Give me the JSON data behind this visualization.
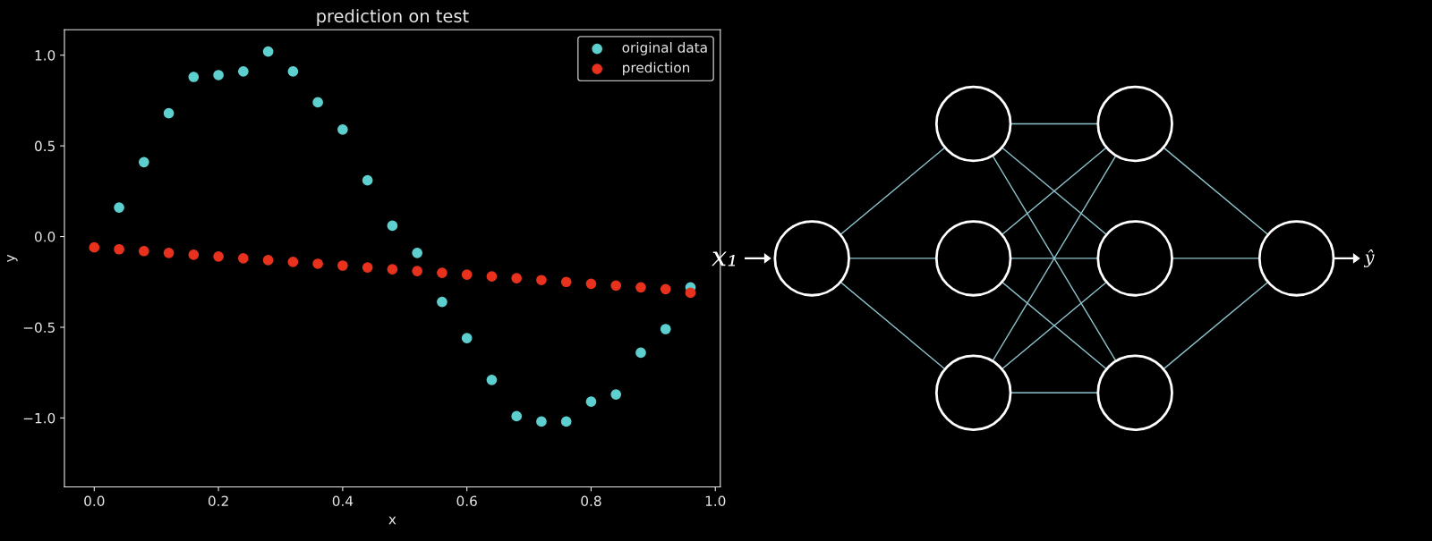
{
  "chart_data": [
    {
      "type": "scatter",
      "title": "prediction on test",
      "xlabel": "x",
      "ylabel": "y",
      "xlim": [
        -0.048,
        1.008
      ],
      "ylim": [
        -1.38,
        1.14
      ],
      "xticks": [
        {
          "value": 0,
          "label": "0.0"
        },
        0.2,
        0.4,
        0.6,
        0.8,
        {
          "value": 1,
          "label": "1.0"
        }
      ],
      "yticks": [
        {
          "value": -1,
          "label": "−1.0"
        },
        {
          "value": -0.5,
          "label": "−0.5"
        },
        {
          "value": 0,
          "label": "0.0"
        },
        0.5,
        {
          "value": 1,
          "label": "1.0"
        }
      ],
      "grid": false,
      "legend": "top right",
      "marker": "circle",
      "series": [
        {
          "name": "original data",
          "color": "#5ecfcf",
          "x": [
            0.04,
            0.08,
            0.12,
            0.16,
            0.2,
            0.24,
            0.28,
            0.32,
            0.36,
            0.4,
            0.44,
            0.48,
            0.52,
            0.56,
            0.6,
            0.64,
            0.68,
            0.72,
            0.76,
            0.8,
            0.84,
            0.88,
            0.92,
            0.96
          ],
          "values": [
            0.16,
            0.41,
            0.68,
            0.88,
            0.89,
            0.91,
            1.02,
            0.91,
            0.74,
            0.59,
            0.31,
            0.06,
            -0.09,
            -0.36,
            -0.56,
            -0.79,
            -0.99,
            -1.02,
            -1.02,
            -0.91,
            -0.87,
            -0.64,
            -0.51,
            -0.28
          ]
        },
        {
          "name": "prediction",
          "color": "#e8321e",
          "x": [
            0,
            0.04,
            0.08,
            0.12,
            0.16,
            0.2,
            0.24,
            0.28,
            0.32,
            0.36,
            0.4,
            0.44,
            0.48,
            0.52,
            0.56,
            0.6,
            0.64,
            0.68,
            0.72,
            0.76,
            0.8,
            0.84,
            0.88,
            0.92,
            0.96
          ],
          "values": [
            -0.06,
            -0.07,
            -0.08,
            -0.09,
            -0.1,
            -0.11,
            -0.12,
            -0.13,
            -0.14,
            -0.15,
            -0.16,
            -0.17,
            -0.18,
            -0.19,
            -0.2,
            -0.21,
            -0.22,
            -0.23,
            -0.24,
            -0.25,
            -0.26,
            -0.27,
            -0.28,
            -0.29,
            -0.31
          ]
        }
      ]
    },
    {
      "type": "other",
      "annotations": [
        "x₁",
        "ŷ"
      ]
    }
  ]
}
